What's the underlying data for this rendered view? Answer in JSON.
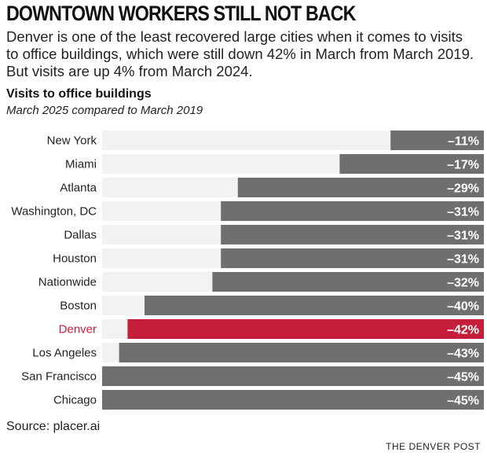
{
  "headline": "DOWNTOWN WORKERS STILL NOT BACK",
  "dek": "Denver is one of the least recovered large cities when it comes to visits to office buildings, which were still down 42% in March from March 2019. But visits are up 4% from March 2024.",
  "chart_data": {
    "type": "bar",
    "orientation": "horizontal",
    "title": "Visits to office buildings",
    "subtitle": "March 2025 compared to March 2019",
    "categories": [
      "New York",
      "Miami",
      "Atlanta",
      "Washington, DC",
      "Dallas",
      "Houston",
      "Nationwide",
      "Boston",
      "Denver",
      "Los Angeles",
      "San Francisco",
      "Chicago"
    ],
    "values": [
      -11,
      -17,
      -29,
      -31,
      -31,
      -31,
      -32,
      -40,
      -42,
      -43,
      -45,
      -45
    ],
    "labels": [
      "–11%",
      "–17%",
      "–29%",
      "–31%",
      "–31%",
      "–31%",
      "–32%",
      "–40%",
      "–42%",
      "–43%",
      "–45%",
      "–45%"
    ],
    "unit": "%",
    "xlim": [
      -45,
      0
    ],
    "highlight": "Denver",
    "colors": {
      "bar": "#6f6f6f",
      "highlight": "#c41e3a",
      "track": "#f2f2f2",
      "label": "#ffffff",
      "highlight_label": "#c41e3a",
      "category_label": "#222222"
    }
  },
  "source": "Source: placer.ai",
  "credit": "THE DENVER POST"
}
